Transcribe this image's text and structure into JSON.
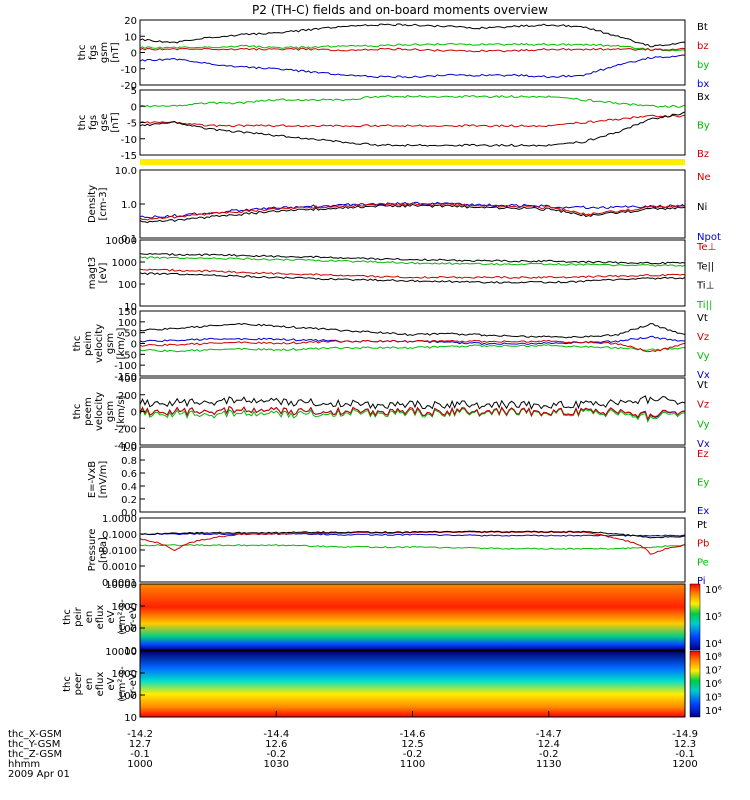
{
  "figure": {
    "title": "P2 (TH-C) fields and on-board moments overview"
  },
  "panels": [
    {
      "id": "fgs-gsm",
      "ylabel_lines": [
        "thc",
        "fgs",
        "gsm",
        "[nT]"
      ],
      "yticks": [
        "20",
        "10",
        "0",
        "-10",
        "-20"
      ],
      "legend": [
        {
          "label": "Bt",
          "color": "#000000"
        },
        {
          "label": "bz",
          "color": "#cc0000"
        },
        {
          "label": "by",
          "color": "#00bb00"
        },
        {
          "label": "bx",
          "color": "#0000cc"
        }
      ]
    },
    {
      "id": "fgs-gse-ssl",
      "ylabel_lines": [
        "thc",
        "fgs",
        "gse",
        "[nT]"
      ],
      "yticks": [
        "5",
        "0",
        "-5",
        "-10",
        "-15"
      ],
      "legend": [
        {
          "label": "Bx",
          "color": "#000000"
        },
        {
          "label": "By",
          "color": "#00bb00"
        },
        {
          "label": "Bz",
          "color": "#cc0000"
        }
      ]
    },
    {
      "id": "density",
      "ylabel_lines": [
        "Density",
        "[cm-3]"
      ],
      "yticks": [
        "10.0",
        "1.0",
        "0.1"
      ],
      "legend": [
        {
          "label": "Ne",
          "color": "#cc0000"
        },
        {
          "label": "Ni",
          "color": "#000000"
        },
        {
          "label": "Npot",
          "color": "#0000cc"
        }
      ]
    },
    {
      "id": "temperature",
      "ylabel_lines": [
        "magt3",
        "[eV]"
      ],
      "yticks": [
        "10000",
        "1000",
        "100",
        "10"
      ],
      "legend": [
        {
          "label": "Te⊥",
          "color": "#cc0000"
        },
        {
          "label": "Te||",
          "color": "#000000"
        },
        {
          "label": "Ti⊥",
          "color": "#000000"
        },
        {
          "label": "Ti||",
          "color": "#00bb00"
        }
      ]
    },
    {
      "id": "peim-velocity",
      "ylabel_lines": [
        "thc",
        "peim",
        "velocity",
        "gsm",
        "[km/s]"
      ],
      "yticks": [
        "150",
        "100",
        "50",
        "0",
        "-50",
        "-100",
        "-150"
      ],
      "legend": [
        {
          "label": "Vt",
          "color": "#000000"
        },
        {
          "label": "Vz",
          "color": "#cc0000"
        },
        {
          "label": "Vy",
          "color": "#00bb00"
        },
        {
          "label": "Vx",
          "color": "#0000cc"
        }
      ]
    },
    {
      "id": "peem-velocity",
      "ylabel_lines": [
        "thc",
        "peem",
        "velocity",
        "gsm",
        "[km/s]"
      ],
      "yticks": [
        "400",
        "200",
        "0",
        "-200",
        "-400"
      ],
      "legend": [
        {
          "label": "Vt",
          "color": "#000000"
        },
        {
          "label": "Vz",
          "color": "#cc0000"
        },
        {
          "label": "Vy",
          "color": "#00bb00"
        },
        {
          "label": "Vx",
          "color": "#0000cc"
        }
      ]
    },
    {
      "id": "efield",
      "ylabel_lines": [
        "E=-VxB",
        "[mV/m]"
      ],
      "yticks": [
        "1.0",
        "0.8",
        "0.6",
        "0.4",
        "0.2",
        "0.0"
      ],
      "legend": [
        {
          "label": "Ez",
          "color": "#cc0000"
        },
        {
          "label": "Ey",
          "color": "#00bb00"
        },
        {
          "label": "Ex",
          "color": "#0000cc"
        }
      ]
    },
    {
      "id": "pressure",
      "ylabel_lines": [
        "Pressure",
        "[nPa]"
      ],
      "yticks": [
        "1.0000",
        "0.1000",
        "0.0100",
        "0.0010",
        "0.0001"
      ],
      "legend": [
        {
          "label": "Pt",
          "color": "#000000"
        },
        {
          "label": "Pb",
          "color": "#cc0000"
        },
        {
          "label": "Pe",
          "color": "#00bb00"
        },
        {
          "label": "Pi",
          "color": "#0000cc"
        }
      ]
    },
    {
      "id": "ion-spectrogram",
      "ylabel_lines": [
        "thc",
        "peir",
        "en",
        "eflux",
        "eV",
        "(cm²-s-",
        "sr-eV)"
      ],
      "yticks": [
        "10000",
        "1000",
        "100",
        "10"
      ],
      "colorbar_ticks": [
        "10⁶",
        "10⁵",
        "10⁴"
      ]
    },
    {
      "id": "electron-spectrogram",
      "ylabel_lines": [
        "thc",
        "peer",
        "en",
        "eflux",
        "eV",
        "(cm²-s-",
        "sr-eV)"
      ],
      "yticks": [
        "10000",
        "1000",
        "100",
        "10"
      ],
      "colorbar_ticks": [
        "10⁸",
        "10⁷",
        "10⁶",
        "10⁵",
        "10⁴"
      ]
    }
  ],
  "xaxis": {
    "rows": [
      {
        "label": "thc_X-GSM",
        "values": [
          "-14.2",
          "-14.4",
          "-14.6",
          "-14.7",
          "-14.9"
        ]
      },
      {
        "label": "thc_Y-GSM",
        "values": [
          "12.7",
          "12.6",
          "12.5",
          "12.4",
          "12.3"
        ]
      },
      {
        "label": "thc_Z-GSM",
        "values": [
          "-0.1",
          "-0.2",
          "-0.2",
          "-0.2",
          "-0.1"
        ]
      },
      {
        "label": "hhmm",
        "values": [
          "1000",
          "1030",
          "1100",
          "1130",
          "1200"
        ]
      }
    ],
    "date": "2009 Apr 01"
  },
  "chart_data": {
    "type": "line",
    "time_hhmm": [
      1000,
      1030,
      1100,
      1130,
      1200
    ],
    "panels": [
      {
        "name": "fgs gsm [nT]",
        "ylim": [
          -20,
          20
        ],
        "series": [
          {
            "name": "Bt",
            "values": [
              7,
              10,
              14,
              15,
              4
            ]
          },
          {
            "name": "bz",
            "values": [
              2,
              2,
              2,
              1,
              2
            ]
          },
          {
            "name": "by",
            "values": [
              3,
              3,
              4,
              5,
              1
            ]
          },
          {
            "name": "bx",
            "values": [
              -5,
              -10,
              -13,
              -14,
              -3
            ]
          }
        ]
      },
      {
        "name": "fgs gse [nT]",
        "ylim": [
          -15,
          5
        ],
        "series": [
          {
            "name": "Bx",
            "values": [
              -6,
              -7,
              -10,
              -12,
              -3
            ]
          },
          {
            "name": "By",
            "values": [
              0,
              1,
              2,
              3,
              0
            ]
          },
          {
            "name": "Bz",
            "values": [
              -5,
              -6,
              -6,
              -6,
              -3
            ]
          }
        ]
      },
      {
        "name": "Density [cm-3]",
        "ylim": [
          0.1,
          10
        ],
        "log": true,
        "series": [
          {
            "name": "Ne",
            "values": [
              0.35,
              0.7,
              0.9,
              0.8,
              0.8
            ]
          },
          {
            "name": "Ni",
            "values": [
              0.3,
              0.6,
              0.8,
              0.7,
              0.7
            ]
          },
          {
            "name": "Npot",
            "values": [
              0.4,
              0.7,
              0.9,
              0.8,
              0.8
            ]
          }
        ]
      },
      {
        "name": "magt3 [eV]",
        "ylim": [
          10,
          10000
        ],
        "log": true,
        "series": [
          {
            "name": "Te⊥",
            "values": [
              450,
              300,
              200,
              200,
              250
            ]
          },
          {
            "name": "Te||",
            "values": [
              300,
              200,
              150,
              120,
              180
            ]
          },
          {
            "name": "Ti⊥",
            "values": [
              2200,
              1800,
              1300,
              1100,
              900
            ]
          },
          {
            "name": "Ti||",
            "values": [
              1500,
              1300,
              900,
              800,
              700
            ]
          }
        ]
      },
      {
        "name": "peim velocity gsm [km/s]",
        "ylim": [
          -150,
          150
        ],
        "series": [
          {
            "name": "Vt",
            "values": [
              60,
              80,
              40,
              30,
              40
            ]
          },
          {
            "name": "Vz",
            "values": [
              -10,
              0,
              10,
              10,
              0
            ]
          },
          {
            "name": "Vy",
            "values": [
              -30,
              -30,
              -20,
              -10,
              -20
            ]
          },
          {
            "name": "Vx",
            "values": [
              10,
              20,
              10,
              0,
              10
            ]
          }
        ]
      },
      {
        "name": "peem velocity gsm [km/s]",
        "ylim": [
          -400,
          400
        ],
        "series": [
          {
            "name": "Vt",
            "values": [
              100,
              120,
              80,
              80,
              100
            ]
          },
          {
            "name": "Vz",
            "values": [
              0,
              10,
              0,
              0,
              0
            ]
          },
          {
            "name": "Vy",
            "values": [
              -20,
              -30,
              -20,
              -10,
              -20
            ]
          },
          {
            "name": "Vx",
            "values": [
              0,
              10,
              0,
              0,
              0
            ]
          }
        ]
      },
      {
        "name": "E=-VxB [mV/m]",
        "ylim": [
          0,
          1
        ],
        "series": []
      },
      {
        "name": "Pressure [nPa]",
        "ylim": [
          0.0001,
          1
        ],
        "log": true,
        "series": [
          {
            "name": "Pt",
            "values": [
              0.1,
              0.12,
              0.13,
              0.14,
              0.06
            ]
          },
          {
            "name": "Pb",
            "values": [
              0.05,
              0.1,
              0.12,
              0.13,
              0.02
            ]
          },
          {
            "name": "Pe",
            "values": [
              0.02,
              0.02,
              0.015,
              0.012,
              0.02
            ]
          },
          {
            "name": "Pi",
            "values": [
              0.1,
              0.1,
              0.09,
              0.08,
              0.08
            ]
          }
        ]
      }
    ]
  }
}
